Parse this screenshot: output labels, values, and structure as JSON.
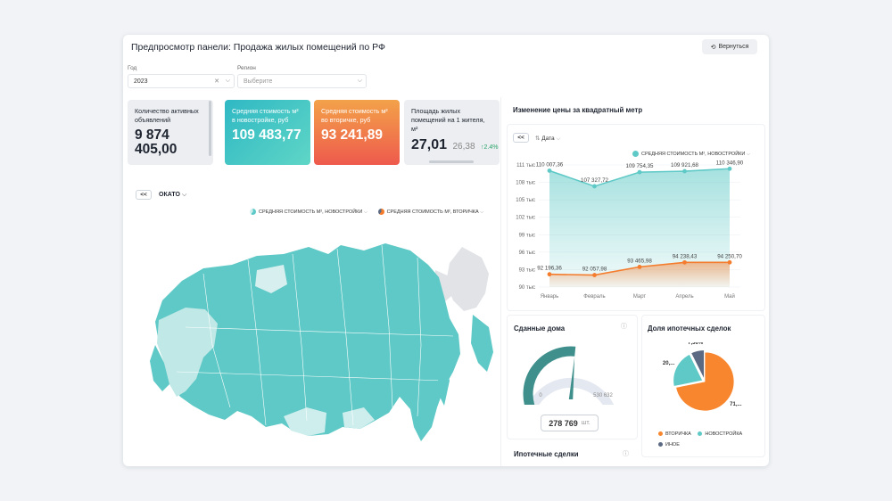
{
  "header": {
    "title": "Предпросмотр панели: Продажа жилых помещений по РФ",
    "back_label": "Вернуться"
  },
  "filters": {
    "year_label": "Год",
    "year_value": "2023",
    "region_label": "Регион",
    "region_placeholder": "Выберите"
  },
  "cards": [
    {
      "label": "Количество активных объявлений",
      "value": "9 874 405,00",
      "bg": "#eceef1"
    },
    {
      "label": "Средняя стоимость м² в новостройке, руб",
      "value": "109 483,77",
      "bg": "#39c5c1"
    },
    {
      "label": "Средняя стоимость м² во вторичке, руб",
      "value": "93 241,89",
      "bg": "#f17a50"
    },
    {
      "label": "Площадь жилых помещений на 1 жителя, м²",
      "value": "27,01",
      "prev": "26,38",
      "delta": "2.4%",
      "bg": "#eceef1"
    }
  ],
  "map": {
    "back": "<<",
    "level": "ОКАТО",
    "legend": [
      "СРЕДНЯЯ СТОИМОСТЬ М², НОВОСТРОЙКИ",
      "СРЕДНЯЯ СТОИМОСТЬ М², ВТОРИЧКА"
    ]
  },
  "price_chart_section": {
    "title": "Изменение цены за квадратный метр",
    "back": "<<",
    "dim": "Дата",
    "legend": "СРЕДНЯЯ СТОИМОСТЬ М², НОВОСТРОЙКИ"
  },
  "chart_data": {
    "type": "area",
    "title": "Изменение цены за квадратный метр",
    "categories": [
      "Январь",
      "Февраль",
      "Март",
      "Апрель",
      "Май"
    ],
    "series": [
      {
        "name": "Средняя стоимость м², новостройки",
        "values": [
          110007.36,
          107327.72,
          109754.35,
          109921.68,
          110346.9
        ],
        "labels": [
          "110 007,36",
          "107 327,72",
          "109 754,35",
          "109 921,68",
          "110 346,90"
        ],
        "color": "#5ec9c6"
      },
      {
        "name": "Средняя стоимость м², вторичка",
        "values": [
          92196.36,
          92057.98,
          93465.98,
          94238.43,
          94250.7
        ],
        "labels": [
          "92 196,36",
          "92 057,98",
          "93 465,98",
          "94 238,43",
          "94 250,70"
        ],
        "color": "#f47c2c"
      }
    ],
    "ylim": [
      90000,
      111000
    ],
    "yticks": [
      90000,
      93000,
      96000,
      99000,
      102000,
      105000,
      108000,
      111000
    ],
    "ytick_labels": [
      "90 тыс",
      "93 тыс",
      "96 тыс",
      "99 тыс",
      "102 тыс",
      "105 тыс",
      "108 тыс",
      "111 тыс"
    ]
  },
  "gauge": {
    "title": "Сданные дома",
    "min_label": "0",
    "max_label": "530 632",
    "max": 530632,
    "value": 278769,
    "value_label": "278 769",
    "unit": "шт."
  },
  "mortgage": {
    "title": "Ипотечные сделки"
  },
  "share": {
    "title": "Доля ипотечных сделок",
    "slices": [
      {
        "name": "ВТОРИЧКА",
        "value": 71.8,
        "label": "71,...",
        "color": "#f7862e"
      },
      {
        "name": "НОВОСТРОЙКА",
        "value": 20.8,
        "label": "20,...",
        "color": "#5ec9c6"
      },
      {
        "name": "ИНОЕ",
        "value": 7.36,
        "label": "7,36%",
        "color": "#5b6a82"
      }
    ]
  }
}
